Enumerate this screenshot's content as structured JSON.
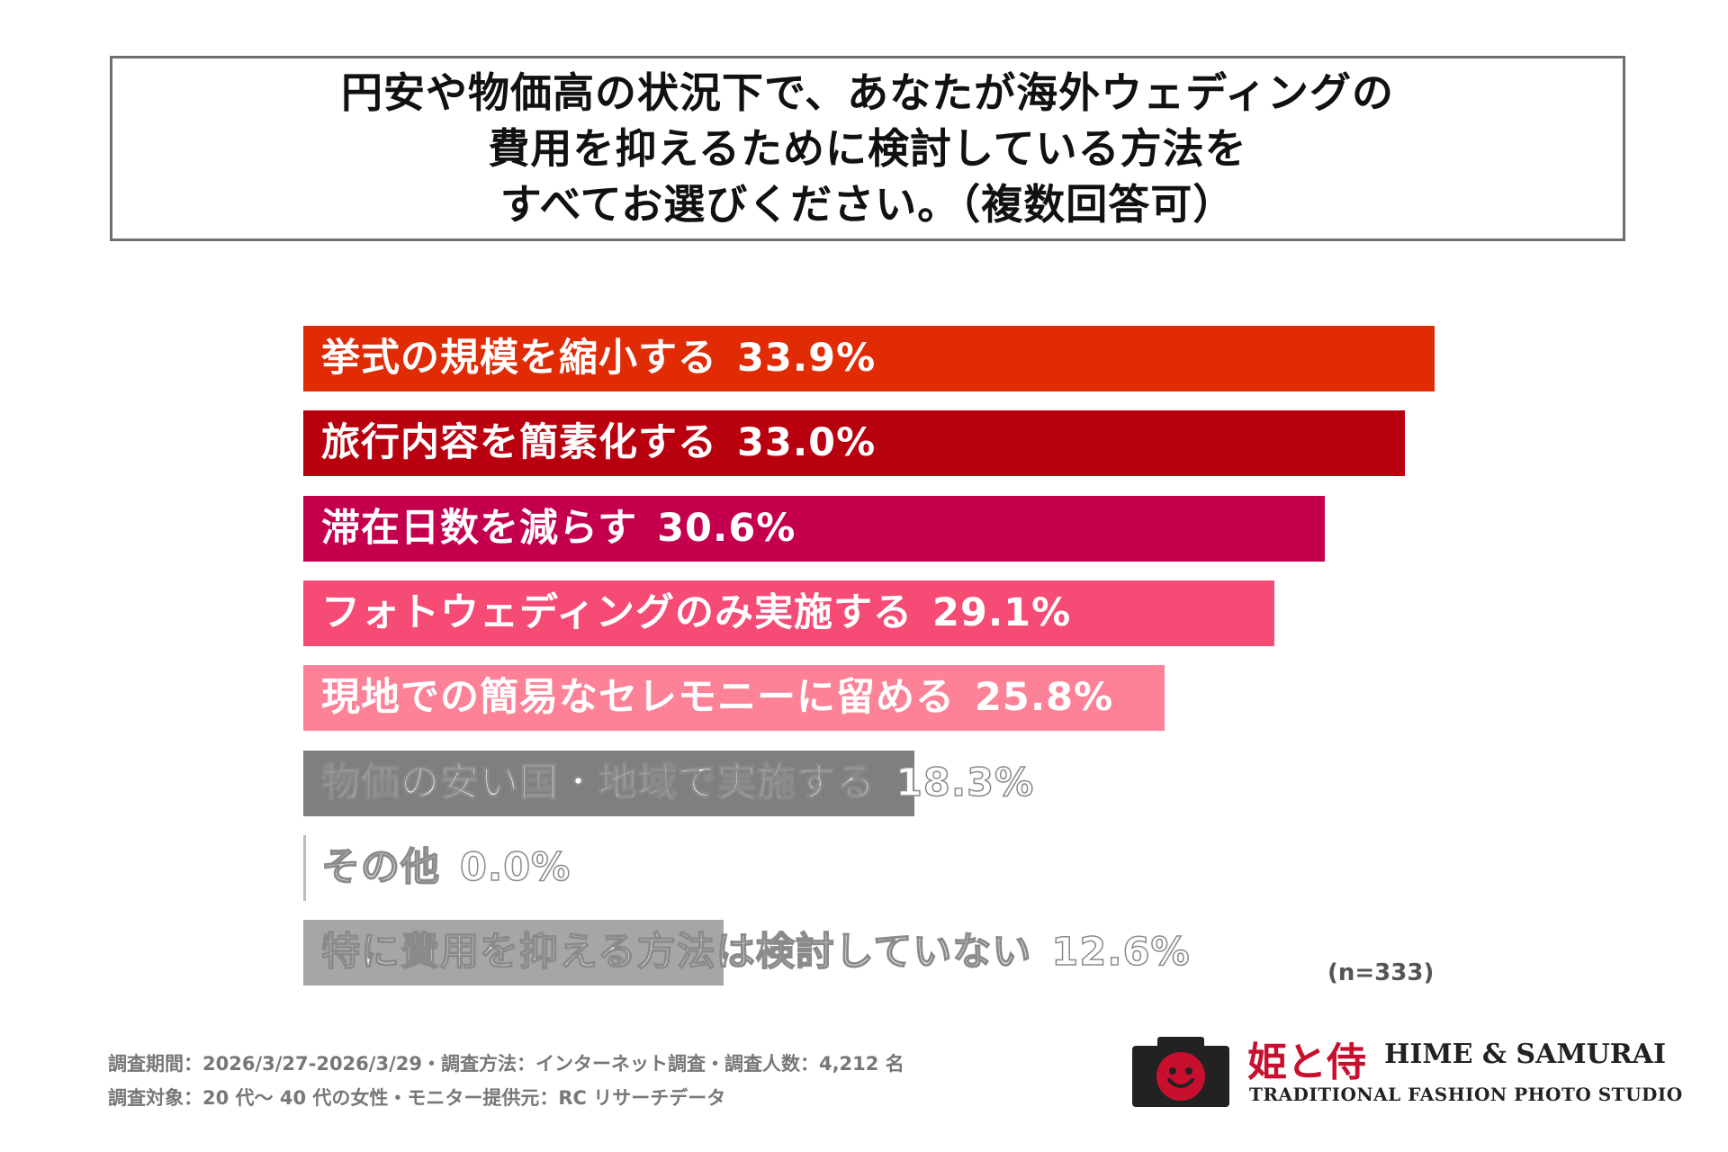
{
  "title": {
    "lines": [
      "円安や物価高の状況下で、あなたが海外ウェディングの",
      "費用を抑えるために検討している方法を",
      "すべてお選びください。（複数回答可）"
    ]
  },
  "chart_data": {
    "type": "bar",
    "orientation": "horizontal",
    "categories": [
      "挙式の規模を縮小する",
      "旅行内容を簡素化する",
      "滞在日数を減らす",
      "フォトウェディングのみ実施する",
      "現地での簡易なセレモニーに留める",
      "物価の安い国・地域で実施する",
      "その他",
      "特に費用を抑える方法は検討していない"
    ],
    "values": [
      33.9,
      33.0,
      30.6,
      29.1,
      25.8,
      18.3,
      0.0,
      12.6
    ],
    "value_labels": [
      "33.9%",
      "33.0%",
      "30.6%",
      "29.1%",
      "25.8%",
      "18.3%",
      "0.0%",
      "12.6%"
    ],
    "colors": [
      "#e02b05",
      "#b8000f",
      "#c4004e",
      "#f54b74",
      "#fd8197",
      "#7f7f7f",
      "#a6a6a6",
      "#a6a6a6"
    ],
    "xlim": [
      0,
      33.9
    ],
    "grid": false,
    "legend": "none",
    "sample_note": "(n=333)"
  },
  "footer": {
    "line1": "調査期間：2026/3/27-2026/3/29・調査方法：インターネット調査・調査人数：4,212 名",
    "line2": "調査対象：20 代～ 40 代の女性・モニター提供元：RC リサーチデータ"
  },
  "logo": {
    "jp": "姫と侍",
    "en": "HIME & SAMURAI",
    "sub": "TRADITIONAL FASHION PHOTO STUDIO",
    "color": "#c8102e"
  }
}
